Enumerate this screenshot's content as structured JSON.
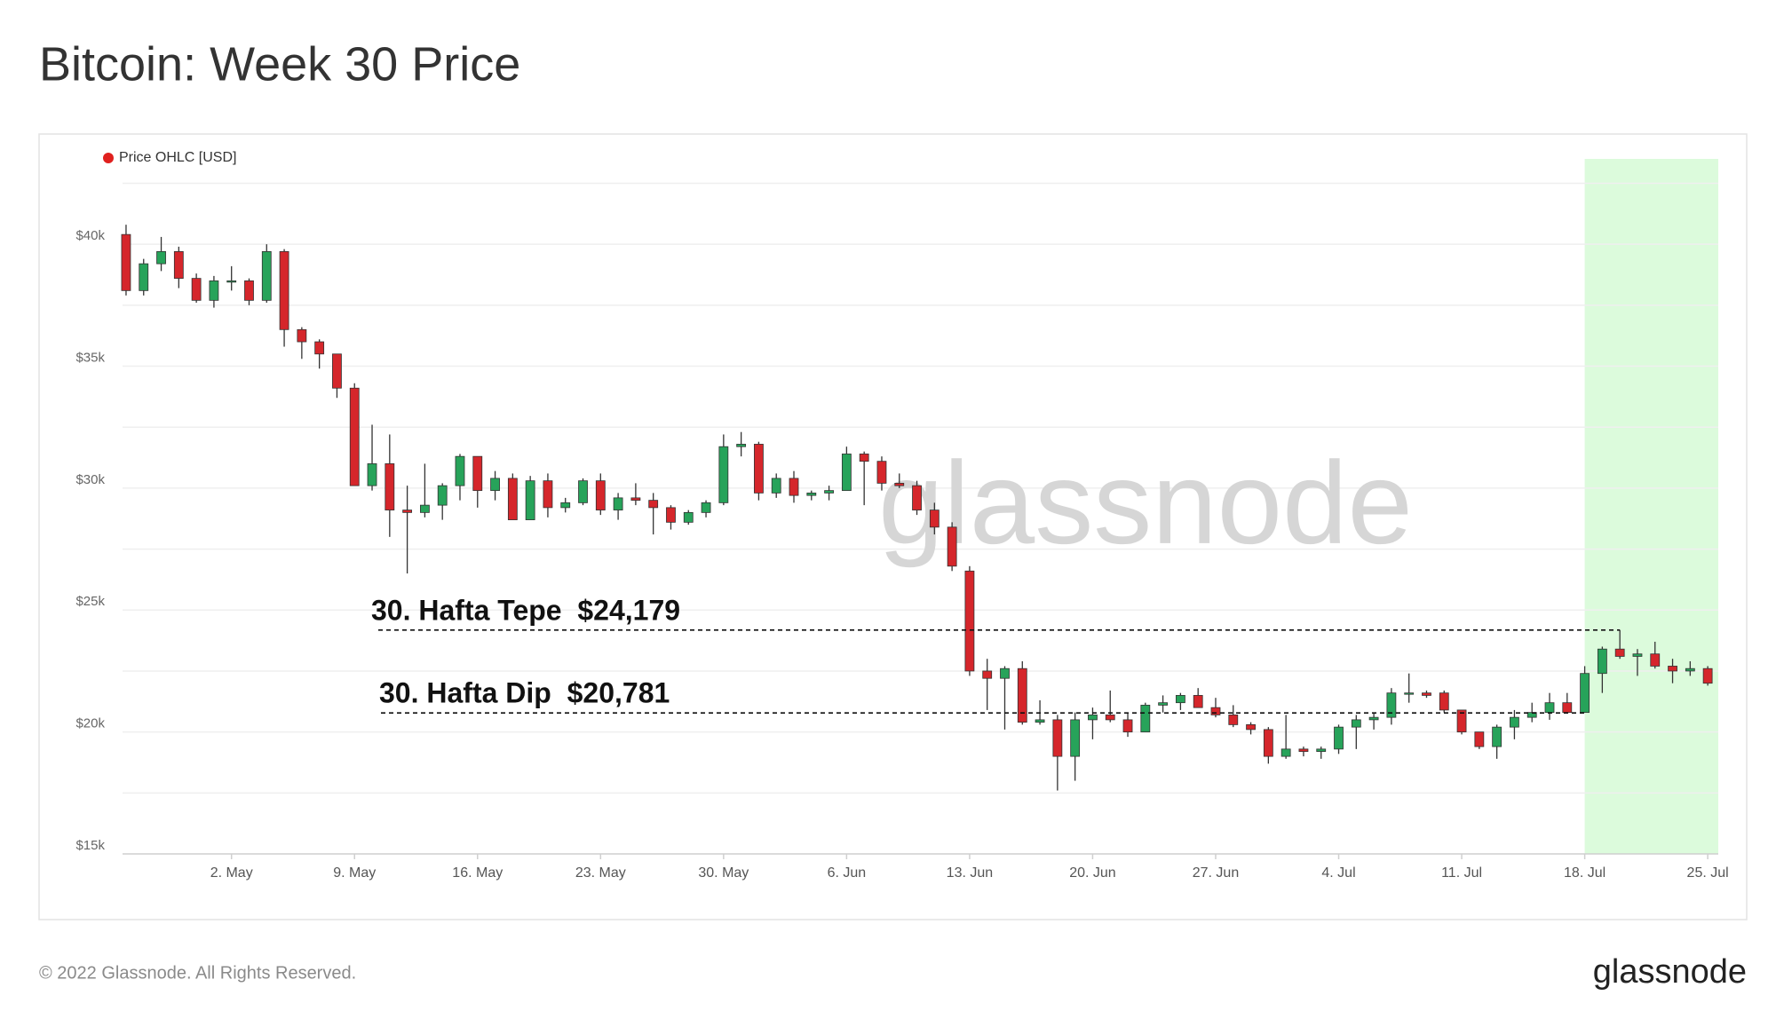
{
  "chart_data": {
    "type": "candlestick",
    "title": "Bitcoin: Week 30 Price",
    "series": [
      {
        "name": "Price OHLC [USD]",
        "color": "#e0201e",
        "up_color": "#27a35a",
        "down_color": "#d5262b",
        "x": [
          116,
          117,
          118,
          119,
          120,
          121,
          122,
          123,
          124,
          125,
          126,
          127,
          128,
          129,
          130,
          131,
          132,
          133,
          134,
          135,
          136,
          137,
          138,
          139,
          140,
          141,
          142,
          143,
          144,
          145,
          146,
          147,
          148,
          149,
          150,
          151,
          152,
          153,
          154,
          155,
          156,
          157,
          158,
          159,
          160,
          161,
          162,
          163,
          164,
          165,
          166,
          167,
          168,
          169,
          170,
          171,
          172,
          173,
          174,
          175,
          176,
          177,
          178,
          179,
          180,
          181,
          182,
          183,
          184,
          185,
          186,
          187,
          188,
          189,
          190,
          191,
          192,
          193,
          194,
          195,
          196,
          197,
          198,
          199,
          200,
          201,
          202,
          203,
          204,
          205,
          206
        ],
        "open": [
          40400,
          38100,
          39200,
          39700,
          38600,
          37700,
          38500,
          38500,
          37700,
          39700,
          36500,
          36000,
          35500,
          34100,
          30100,
          31000,
          29100,
          29000,
          29300,
          30100,
          31300,
          29900,
          30400,
          28700,
          30300,
          29200,
          29400,
          30300,
          29100,
          29600,
          29500,
          29200,
          28600,
          29000,
          29400,
          31700,
          31800,
          29800,
          30400,
          29700,
          29800,
          29900,
          31400,
          31100,
          30200,
          30100,
          29100,
          28400,
          26600,
          22500,
          22200,
          22600,
          20400,
          20500,
          19000,
          20500,
          20700,
          20500,
          20000,
          21100,
          21200,
          21500,
          21000,
          20700,
          20300,
          20100,
          19000,
          19300,
          19200,
          19300,
          20200,
          20500,
          20600,
          21600,
          21600,
          21600,
          20900,
          20000,
          19400,
          20200,
          20600,
          20800,
          21200,
          20800,
          22400,
          23400,
          23100,
          23200,
          22700,
          22500,
          22600
        ],
        "high": [
          40800,
          39400,
          40300,
          39900,
          38800,
          38700,
          39100,
          38600,
          40000,
          39800,
          36600,
          36100,
          35500,
          34300,
          32600,
          32200,
          30100,
          31000,
          30200,
          31400,
          31300,
          30700,
          30600,
          30500,
          30600,
          29600,
          30400,
          30600,
          29800,
          30200,
          29800,
          29300,
          29100,
          29500,
          32200,
          32300,
          31900,
          30600,
          30700,
          29900,
          30100,
          31700,
          31500,
          31300,
          30600,
          30300,
          29400,
          28600,
          26800,
          23000,
          22700,
          22900,
          21300,
          20700,
          20800,
          21000,
          21700,
          20800,
          21200,
          21500,
          21600,
          21800,
          21400,
          21100,
          20400,
          20200,
          20700,
          19400,
          19400,
          20300,
          20700,
          20800,
          21800,
          22400,
          21700,
          21700,
          20900,
          20000,
          20300,
          20900,
          21200,
          21600,
          21600,
          22700,
          23500,
          24179,
          23400,
          23700,
          23000,
          22900,
          22700
        ],
        "low": [
          37900,
          37900,
          38900,
          38200,
          37600,
          37400,
          38100,
          37500,
          37600,
          35800,
          35300,
          34900,
          33700,
          30100,
          29900,
          28000,
          26500,
          28800,
          28700,
          29500,
          29200,
          29500,
          28700,
          28700,
          28800,
          29000,
          29300,
          28900,
          28700,
          29300,
          28100,
          28300,
          28500,
          28800,
          29300,
          31300,
          29500,
          29600,
          29400,
          29500,
          29500,
          29900,
          29300,
          29900,
          30000,
          28900,
          28100,
          26600,
          22300,
          20900,
          20100,
          20300,
          20300,
          17600,
          18000,
          19700,
          20400,
          19800,
          20000,
          20800,
          20900,
          21000,
          20600,
          20200,
          19900,
          18700,
          18900,
          19000,
          18900,
          19100,
          19300,
          20100,
          20300,
          21200,
          21400,
          20800,
          19900,
          19300,
          18900,
          19700,
          20400,
          20500,
          20800,
          20800,
          21600,
          23000,
          22300,
          22600,
          22000,
          22300,
          21900
        ],
        "close": [
          38100,
          39200,
          39700,
          38600,
          37700,
          38500,
          38500,
          37700,
          39700,
          36500,
          36000,
          35500,
          34100,
          30100,
          31000,
          29100,
          29000,
          29300,
          30100,
          31300,
          29900,
          30400,
          28700,
          30300,
          29200,
          29400,
          30300,
          29100,
          29600,
          29500,
          29200,
          28600,
          29000,
          29400,
          31700,
          31800,
          29800,
          30400,
          29700,
          29800,
          29900,
          31400,
          31100,
          30200,
          30100,
          29100,
          28400,
          26800,
          22500,
          22200,
          22600,
          20400,
          20500,
          19000,
          20500,
          20700,
          20500,
          20000,
          21100,
          21200,
          21500,
          21000,
          20700,
          20300,
          20100,
          19000,
          19300,
          19200,
          19300,
          20200,
          20500,
          20600,
          21600,
          21600,
          21500,
          20900,
          20000,
          19400,
          20200,
          20600,
          20800,
          21200,
          20800,
          22400,
          23400,
          23100,
          23200,
          22700,
          22500,
          22600,
          22000
        ]
      }
    ],
    "xlim": [
      115.8,
      206.6
    ],
    "xticks": [
      {
        "value": 122,
        "label": "2. May"
      },
      {
        "value": 129,
        "label": "9. May"
      },
      {
        "value": 136,
        "label": "16. May"
      },
      {
        "value": 143,
        "label": "23. May"
      },
      {
        "value": 150,
        "label": "30. May"
      },
      {
        "value": 157,
        "label": "6. Jun"
      },
      {
        "value": 164,
        "label": "13. Jun"
      },
      {
        "value": 171,
        "label": "20. Jun"
      },
      {
        "value": 178,
        "label": "27. Jun"
      },
      {
        "value": 185,
        "label": "4. Jul"
      },
      {
        "value": 192,
        "label": "11. Jul"
      },
      {
        "value": 199,
        "label": "18. Jul"
      },
      {
        "value": 206,
        "label": "25. Jul"
      }
    ],
    "ylim": [
      15000,
      43500
    ],
    "yticks": [
      {
        "value": 15000,
        "label": "$15k"
      },
      {
        "value": 20000,
        "label": "$20k"
      },
      {
        "value": 25000,
        "label": "$25k"
      },
      {
        "value": 30000,
        "label": "$30k"
      },
      {
        "value": 35000,
        "label": "$35k"
      },
      {
        "value": 40000,
        "label": "$40k"
      }
    ],
    "ygrid": [
      17500,
      22500,
      27500,
      32500,
      37500,
      42500
    ],
    "grid": true,
    "highlight_from": 199,
    "highlight_color": "#dcfbdc",
    "annotations": [
      {
        "text": "30. Hafta Tepe  $24,179",
        "value": 24179,
        "x_end": 201
      },
      {
        "text": "30. Hafta Dip  $20,781",
        "value": 20781,
        "x_end": 199
      }
    ],
    "watermark": "glassnode",
    "footer": "© 2022 Glassnode. All Rights Reserved.",
    "logo": "glassnode"
  }
}
